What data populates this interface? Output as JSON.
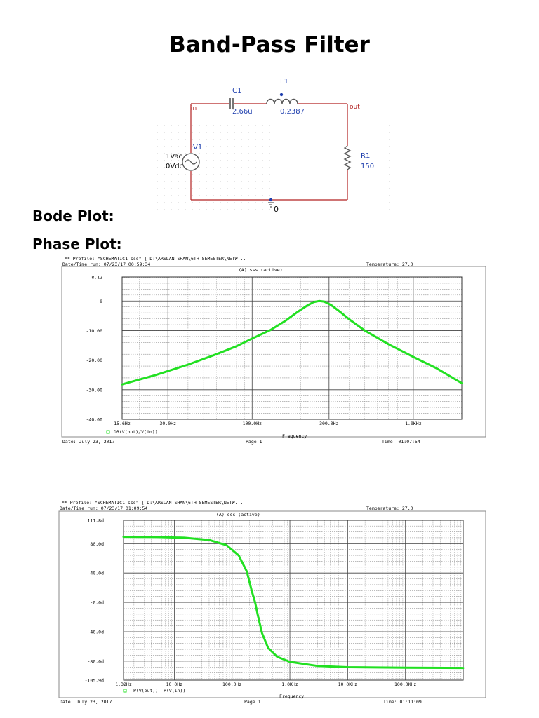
{
  "title": "Band-Pass Filter",
  "headings": {
    "bode": "Bode Plot:",
    "phase": "Phase Plot:"
  },
  "schematic": {
    "c1": {
      "name": "C1",
      "value": "2.66u"
    },
    "l1": {
      "name": "L1",
      "value": "0.2387"
    },
    "r1": {
      "name": "R1",
      "value": "150"
    },
    "v1": {
      "name": "V1",
      "ac": "1Vac",
      "dc": "0Vdc"
    },
    "in_label": "in",
    "out_label": "out",
    "ground_label": "0",
    "wire_color": "#b22222",
    "label_color": "#1f3fae"
  },
  "plot1": {
    "header1": "** Profile: \"SCHEMATIC1-sss\"  [ D:\\ARSLAN SHAN\\6TH SEMESTER\\NETW...",
    "header2": "Date/Time run: 07/23/17 00:59:34",
    "temperature": "Temperature: 27.0",
    "subtitle": "(A) sss (active)",
    "xlabel": "Frequency",
    "legend": "DB(V(out)/V(in))",
    "footer_date": "Date: July 23, 2017",
    "footer_page": "Page 1",
    "footer_time": "Time: 01:07:54"
  },
  "plot2": {
    "header1": "** Profile: \"SCHEMATIC1-sss\"  [ D:\\ARSLAN SHAN\\6TH SEMESTER\\NETW...",
    "header2": "Date/Time run: 07/23/17 01:09:54",
    "temperature": "Temperature: 27.0",
    "subtitle": "(A) sss (active)",
    "xlabel": "Frequency",
    "legend": "P(V(out))- P(V(in))",
    "footer_date": "Date: July 23, 2017",
    "footer_page": "Page 1",
    "footer_time": "Time: 01:11:09"
  },
  "chart_data": [
    {
      "type": "line",
      "x_scale": "log",
      "xlabel": "Frequency",
      "xlim": [
        15.6,
        2000
      ],
      "ylim": [
        -40,
        8.12
      ],
      "xtick_labels": [
        {
          "x": 15.6,
          "label": "15.6Hz"
        },
        {
          "x": 30,
          "label": "30.0Hz"
        },
        {
          "x": 100,
          "label": "100.0Hz"
        },
        {
          "x": 300,
          "label": "300.0Hz"
        },
        {
          "x": 1000,
          "label": "1.0KHz"
        }
      ],
      "xgrid": [
        30,
        100,
        300,
        1000
      ],
      "ytick_labels": [
        {
          "y": 8.12,
          "label": "8.12"
        },
        {
          "y": 0,
          "label": "0"
        },
        {
          "y": -10,
          "label": "-10.00"
        },
        {
          "y": -20,
          "label": "-20.00"
        },
        {
          "y": -30,
          "label": "-30.00"
        },
        {
          "y": -40,
          "label": "-40.00"
        }
      ],
      "color": "#22e022",
      "series": [
        {
          "name": "DB(V(out)/V(in))",
          "points": [
            [
              15.6,
              -28.2
            ],
            [
              25,
              -25.1
            ],
            [
              40,
              -21.5
            ],
            [
              60,
              -18
            ],
            [
              80,
              -15.3
            ],
            [
              100,
              -12.7
            ],
            [
              130,
              -9.8
            ],
            [
              160,
              -6.8
            ],
            [
              190,
              -3.8
            ],
            [
              220,
              -1.5
            ],
            [
              240,
              -0.4
            ],
            [
              260,
              0
            ],
            [
              280,
              -0.2
            ],
            [
              310,
              -1.4
            ],
            [
              350,
              -3.6
            ],
            [
              400,
              -6.2
            ],
            [
              500,
              -10
            ],
            [
              700,
              -14.6
            ],
            [
              1000,
              -18.9
            ],
            [
              1400,
              -22.8
            ],
            [
              2000,
              -27.8
            ]
          ]
        }
      ]
    },
    {
      "type": "line",
      "x_scale": "log",
      "xlabel": "Frequency",
      "xlim": [
        1.32,
        1000000
      ],
      "ylim": [
        -105.9,
        111.8
      ],
      "xtick_labels": [
        {
          "x": 1.32,
          "label": "1.32Hz"
        },
        {
          "x": 10,
          "label": "10.0Hz"
        },
        {
          "x": 100,
          "label": "100.0Hz"
        },
        {
          "x": 1000,
          "label": "1.0KHz"
        },
        {
          "x": 10000,
          "label": "10.0KHz"
        },
        {
          "x": 100000,
          "label": "100.0KHz"
        }
      ],
      "xgrid": [
        10,
        100,
        1000,
        10000,
        100000
      ],
      "ytick_labels": [
        {
          "y": 111.8,
          "label": "111.8d"
        },
        {
          "y": 80,
          "label": "80.0d"
        },
        {
          "y": 40,
          "label": "40.0d"
        },
        {
          "y": 0,
          "label": "-0.0d"
        },
        {
          "y": -40,
          "label": "-40.0d"
        },
        {
          "y": -80,
          "label": "-80.0d"
        },
        {
          "y": -105.9,
          "label": "-105.9d"
        }
      ],
      "color": "#22e022",
      "series": [
        {
          "name": "P(V(out))- P(V(in))",
          "points": [
            [
              1.32,
              89.3
            ],
            [
              5,
              89
            ],
            [
              15,
              88
            ],
            [
              40,
              85
            ],
            [
              80,
              78
            ],
            [
              130,
              64
            ],
            [
              180,
              42
            ],
            [
              220,
              15
            ],
            [
              250,
              0
            ],
            [
              280,
              -18
            ],
            [
              330,
              -42
            ],
            [
              420,
              -62
            ],
            [
              600,
              -74
            ],
            [
              1000,
              -81
            ],
            [
              3000,
              -86.5
            ],
            [
              10000,
              -88.2
            ],
            [
              100000,
              -89
            ],
            [
              1000000,
              -89.3
            ]
          ]
        }
      ]
    }
  ]
}
